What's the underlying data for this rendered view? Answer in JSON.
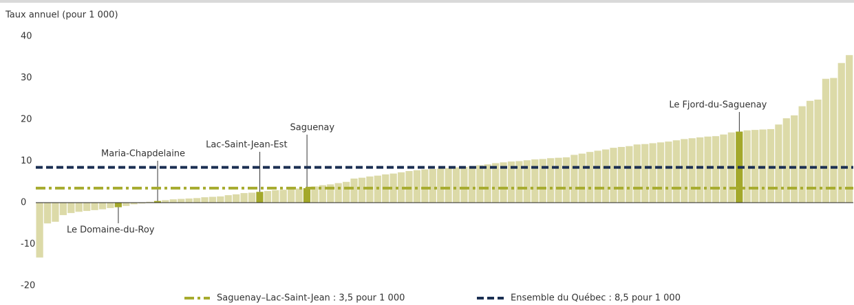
{
  "chart_data": {
    "type": "bar",
    "y_label": "Taux annuel (pour 1 000)",
    "categories": [
      null,
      null,
      null,
      null,
      null,
      null,
      null,
      null,
      null,
      null,
      "Le Domaine-du-Roy",
      null,
      null,
      null,
      null,
      "Maria-Chapdelaine",
      null,
      null,
      null,
      null,
      null,
      null,
      null,
      null,
      null,
      null,
      null,
      null,
      "Lac-Saint-Jean-Est",
      null,
      null,
      null,
      null,
      null,
      "Saguenay",
      null,
      null,
      null,
      null,
      null,
      null,
      null,
      null,
      null,
      null,
      null,
      null,
      null,
      null,
      null,
      null,
      null,
      null,
      null,
      null,
      null,
      null,
      null,
      null,
      null,
      null,
      null,
      null,
      null,
      null,
      null,
      null,
      null,
      null,
      null,
      null,
      null,
      null,
      null,
      null,
      null,
      null,
      null,
      null,
      null,
      null,
      null,
      null,
      null,
      null,
      null,
      null,
      null,
      null,
      "Le Fjord-du-Saguenay",
      null,
      null,
      null,
      null,
      null,
      null,
      null,
      null,
      null,
      null,
      null,
      null,
      null,
      null
    ],
    "values": [
      -13.2,
      -5,
      -4.6,
      -3,
      -2.5,
      -2.2,
      -2,
      -1.8,
      -1.6,
      -1.3,
      -1.1,
      -0.8,
      -0.4,
      -0.2,
      0.2,
      0.4,
      0.6,
      0.8,
      0.9,
      1,
      1.1,
      1.3,
      1.4,
      1.5,
      1.8,
      2,
      2.3,
      2.4,
      2.6,
      2.8,
      3,
      3.1,
      3.3,
      3.4,
      3.5,
      3.9,
      4.2,
      4.4,
      4.7,
      5,
      5.8,
      6,
      6.3,
      6.5,
      6.8,
      7,
      7.3,
      7.6,
      7.8,
      8,
      8.1,
      8.2,
      8.3,
      8.5,
      8.6,
      8.8,
      9,
      9.2,
      9.5,
      9.7,
      9.9,
      10,
      10.2,
      10.4,
      10.5,
      10.7,
      10.8,
      10.9,
      11.5,
      11.8,
      12.2,
      12.5,
      12.8,
      13.2,
      13.4,
      13.6,
      14,
      14.1,
      14.3,
      14.5,
      14.7,
      15,
      15.3,
      15.5,
      15.7,
      15.9,
      16,
      16.4,
      16.9,
      17.1,
      17.4,
      17.5,
      17.6,
      17.7,
      18.8,
      20.3,
      21,
      23.2,
      24.5,
      24.8,
      29.8,
      30,
      33.6,
      35.5
    ],
    "color": "#dcdaa8",
    "highlight_color": "#a3a82a",
    "ylim": [
      -20,
      40
    ],
    "yticks": [
      -20,
      -10,
      0,
      10,
      20,
      30,
      40
    ],
    "reference_lines": [
      {
        "name": "Saguenay–Lac-Saint-Jean : 3,5 pour 1 000",
        "value": 3.5,
        "color": "#a6ab2e",
        "dash": "dashdot"
      },
      {
        "name": "Ensemble du Québec : 8,5 pour 1 000",
        "value": 8.5,
        "color": "#1b2f52",
        "dash": "dashed"
      }
    ]
  }
}
